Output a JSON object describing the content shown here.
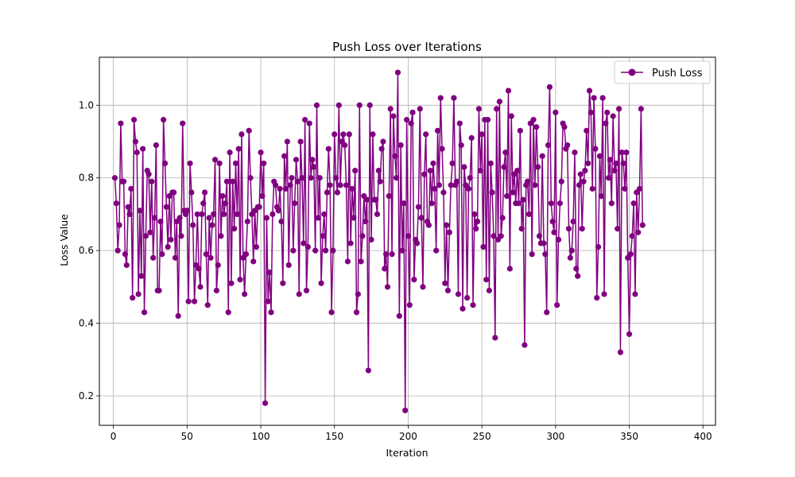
{
  "chart_data": {
    "type": "line",
    "title": "Push Loss over Iterations",
    "xlabel": "Iteration",
    "ylabel": "Loss Value",
    "xlim": [
      -9.5,
      408.5
    ],
    "ylim": [
      0.119,
      1.132
    ],
    "xticks": [
      0,
      50,
      100,
      150,
      200,
      250,
      300,
      350,
      400
    ],
    "yticks": [
      0.2,
      0.4,
      0.6,
      0.8,
      1.0
    ],
    "ytick_labels": [
      "0.2",
      "0.4",
      "0.6",
      "0.8",
      "1.0"
    ],
    "grid": true,
    "legend_position": "top-right",
    "series": [
      {
        "name": "Push Loss",
        "color": "#800080",
        "marker": "circle",
        "x_start": 1,
        "values": [
          0.8,
          0.73,
          0.6,
          0.67,
          0.95,
          0.79,
          0.79,
          0.59,
          0.56,
          0.72,
          0.7,
          0.77,
          0.47,
          0.96,
          0.9,
          0.87,
          0.48,
          0.71,
          0.53,
          0.88,
          0.43,
          0.64,
          0.82,
          0.81,
          0.65,
          0.79,
          0.58,
          0.69,
          0.89,
          0.49,
          0.49,
          0.68,
          0.59,
          0.96,
          0.84,
          0.72,
          0.61,
          0.75,
          0.63,
          0.76,
          0.76,
          0.58,
          0.68,
          0.42,
          0.69,
          0.64,
          0.95,
          0.71,
          0.7,
          0.71,
          0.46,
          0.84,
          0.76,
          0.67,
          0.46,
          0.56,
          0.7,
          0.55,
          0.5,
          0.7,
          0.73,
          0.76,
          0.59,
          0.45,
          0.69,
          0.58,
          0.67,
          0.7,
          0.85,
          0.49,
          0.56,
          0.84,
          0.64,
          0.75,
          0.7,
          0.73,
          0.79,
          0.43,
          0.87,
          0.51,
          0.79,
          0.66,
          0.84,
          0.7,
          0.88,
          0.52,
          0.92,
          0.58,
          0.48,
          0.59,
          0.68,
          0.93,
          0.8,
          0.7,
          0.57,
          0.71,
          0.61,
          0.72,
          0.72,
          0.87,
          0.75,
          0.84,
          0.18,
          0.69,
          0.46,
          0.54,
          0.43,
          0.7,
          0.79,
          0.78,
          0.72,
          0.71,
          0.77,
          0.68,
          0.51,
          0.86,
          0.77,
          0.9,
          0.56,
          0.78,
          0.8,
          0.6,
          0.73,
          0.85,
          0.79,
          0.48,
          0.9,
          0.8,
          0.62,
          0.96,
          0.49,
          0.61,
          0.95,
          0.8,
          0.85,
          0.83,
          0.6,
          1.0,
          0.69,
          0.8,
          0.51,
          0.64,
          0.7,
          0.6,
          0.76,
          0.88,
          0.78,
          0.43,
          0.6,
          0.92,
          0.8,
          0.76,
          1.0,
          0.78,
          0.9,
          0.92,
          0.89,
          0.78,
          0.57,
          0.92,
          0.62,
          0.77,
          0.69,
          0.82,
          0.43,
          0.48,
          1.0,
          0.57,
          0.64,
          0.75,
          0.68,
          0.74,
          0.27,
          1.0,
          0.63,
          0.92,
          0.74,
          0.74,
          0.7,
          0.82,
          0.79,
          0.88,
          0.9,
          0.55,
          0.59,
          0.5,
          0.75,
          0.99,
          0.59,
          0.97,
          0.86,
          0.8,
          1.09,
          0.42,
          0.89,
          0.6,
          0.73,
          0.16,
          0.96,
          0.64,
          0.45,
          0.95,
          0.98,
          0.52,
          0.63,
          0.62,
          0.72,
          0.99,
          0.69,
          0.5,
          0.81,
          0.92,
          0.68,
          0.67,
          0.82,
          0.73,
          0.84,
          0.77,
          0.6,
          0.93,
          0.78,
          1.02,
          0.88,
          0.76,
          0.51,
          0.67,
          0.49,
          0.65,
          0.78,
          0.84,
          1.02,
          0.78,
          0.79,
          0.48,
          0.95,
          0.89,
          0.44,
          0.83,
          0.78,
          0.47,
          0.77,
          0.8,
          0.91,
          0.45,
          0.7,
          0.66,
          0.68,
          0.99,
          0.82,
          0.92,
          0.61,
          0.96,
          0.52,
          0.96,
          0.49,
          0.84,
          0.76,
          0.64,
          0.36,
          0.99,
          0.63,
          1.01,
          0.64,
          0.69,
          0.83,
          0.87,
          0.75,
          1.04,
          0.55,
          0.97,
          0.76,
          0.81,
          0.73,
          0.82,
          0.73,
          0.93,
          0.66,
          0.74,
          0.34,
          0.78,
          0.79,
          0.7,
          0.95,
          0.59,
          0.96,
          0.78,
          0.94,
          0.83,
          0.64,
          0.62,
          0.86,
          0.62,
          0.59,
          0.43,
          0.89,
          1.05,
          0.73,
          0.68,
          0.65,
          0.98,
          0.45,
          0.63,
          0.73,
          0.79,
          0.95,
          0.94,
          0.88,
          0.89,
          0.66,
          0.58,
          0.6,
          0.68,
          0.87,
          0.55,
          0.53,
          0.78,
          0.81,
          0.66,
          0.79,
          0.82,
          0.93,
          0.84,
          1.04,
          0.98,
          0.77,
          1.02,
          0.88,
          0.47,
          0.61,
          0.86,
          0.75,
          1.02,
          0.48,
          0.95,
          0.98,
          0.8,
          0.85,
          0.73,
          0.97,
          0.82,
          0.84,
          0.66,
          0.99,
          0.32,
          0.87,
          0.84,
          0.77,
          0.87,
          0.58,
          0.37,
          0.59,
          0.64,
          0.73,
          0.48,
          0.76,
          0.65,
          0.77,
          0.99,
          0.67
        ]
      }
    ]
  }
}
